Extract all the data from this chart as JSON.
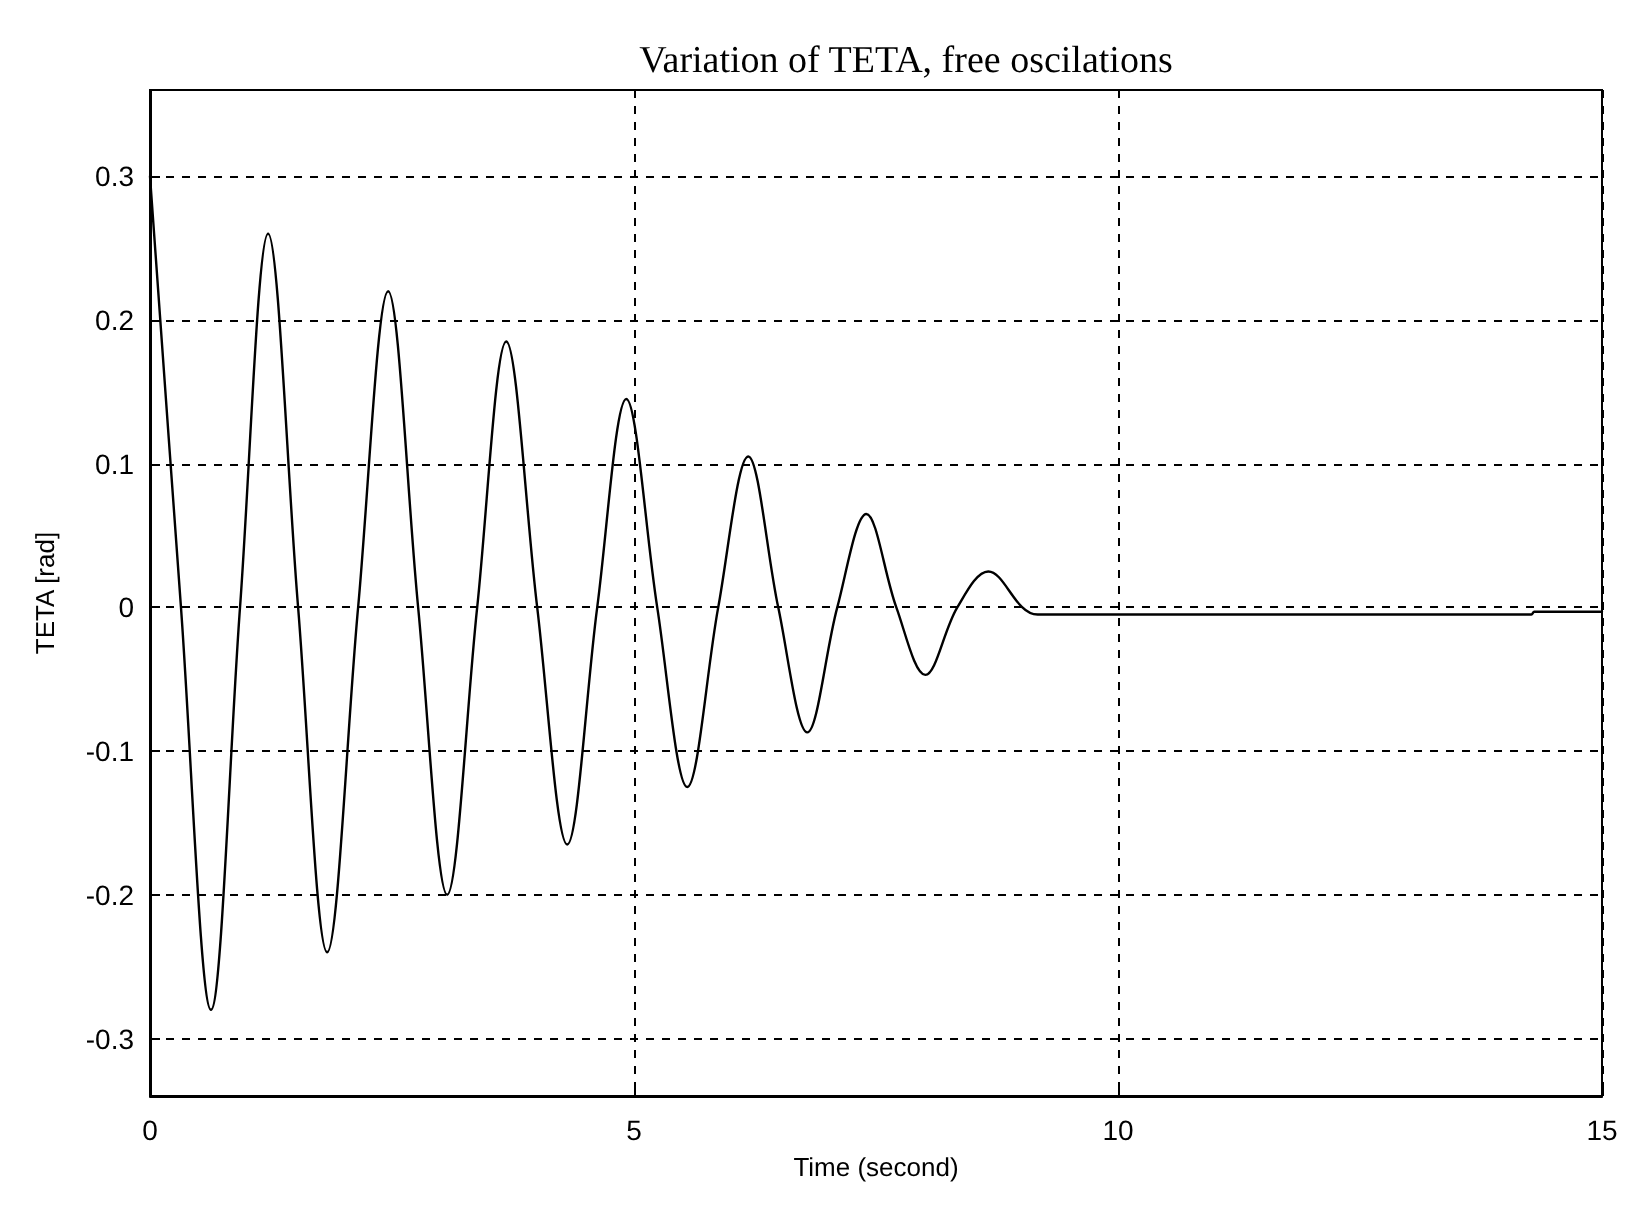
{
  "chart_data": {
    "type": "line",
    "title": "Variation of TETA, free oscilations",
    "xlabel": "Time (second)",
    "ylabel": "TETA [rad]",
    "x": [
      0,
      0.32,
      0.63,
      0.93,
      1.22,
      1.53,
      1.83,
      2.15,
      2.46,
      2.77,
      3.07,
      3.38,
      3.68,
      4.0,
      4.31,
      4.62,
      4.92,
      5.24,
      5.55,
      5.87,
      6.18,
      6.49,
      6.79,
      7.1,
      7.4,
      7.71,
      8.01,
      8.34,
      8.66,
      9.17,
      14.27,
      14.3,
      15
    ],
    "series": [
      {
        "color": "#000000",
        "values": [
          0.3,
          0,
          -0.28,
          0,
          0.26,
          0,
          -0.24,
          0,
          0.22,
          0,
          -0.2,
          0,
          0.185,
          0,
          -0.165,
          0,
          0.145,
          0,
          -0.125,
          0,
          0.105,
          0,
          -0.087,
          0,
          0.065,
          0,
          -0.047,
          0,
          0.025,
          -0.005,
          -0.005,
          -0.003,
          -0.003
        ]
      }
    ],
    "xlim": [
      0,
      15
    ],
    "xticks": [
      0,
      5,
      10,
      15
    ],
    "ylim": [
      -0.34,
      0.36
    ],
    "yticks": [
      -0.3,
      -0.2,
      -0.1,
      0,
      0.1,
      0.2,
      0.3
    ],
    "grid": true,
    "marker": "none",
    "line_style": "solid"
  }
}
